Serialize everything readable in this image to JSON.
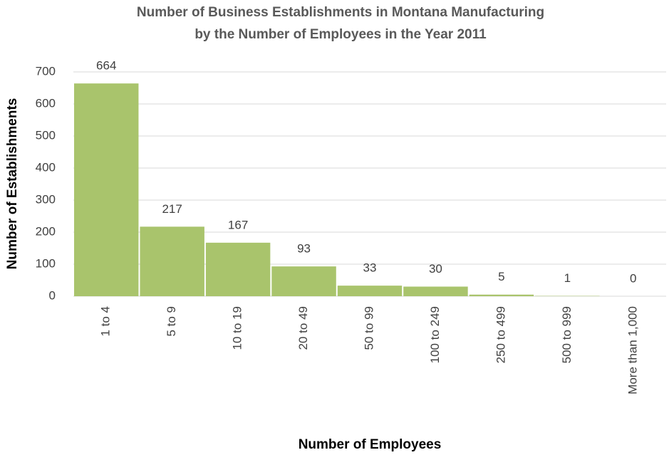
{
  "chart_data": {
    "type": "bar",
    "title": [
      "Number of Business Establishments in Montana Manufacturing",
      "by the Number of Employees in the Year 2011"
    ],
    "x_label": "Number of Employees",
    "y_label": "Number of Establishments",
    "categories": [
      "1 to 4",
      "5 to 9",
      "10 to 19",
      "20 to 49",
      "50 to 99",
      "100 to 249",
      "250 to 499",
      "500 to 999",
      "More than 1,000"
    ],
    "values": [
      664,
      217,
      167,
      93,
      33,
      30,
      5,
      1,
      0
    ],
    "color": "#a9c46c",
    "ylim": [
      0,
      700
    ],
    "yticks": [
      0,
      100,
      200,
      300,
      400,
      500,
      600,
      700
    ],
    "grid": true
  }
}
